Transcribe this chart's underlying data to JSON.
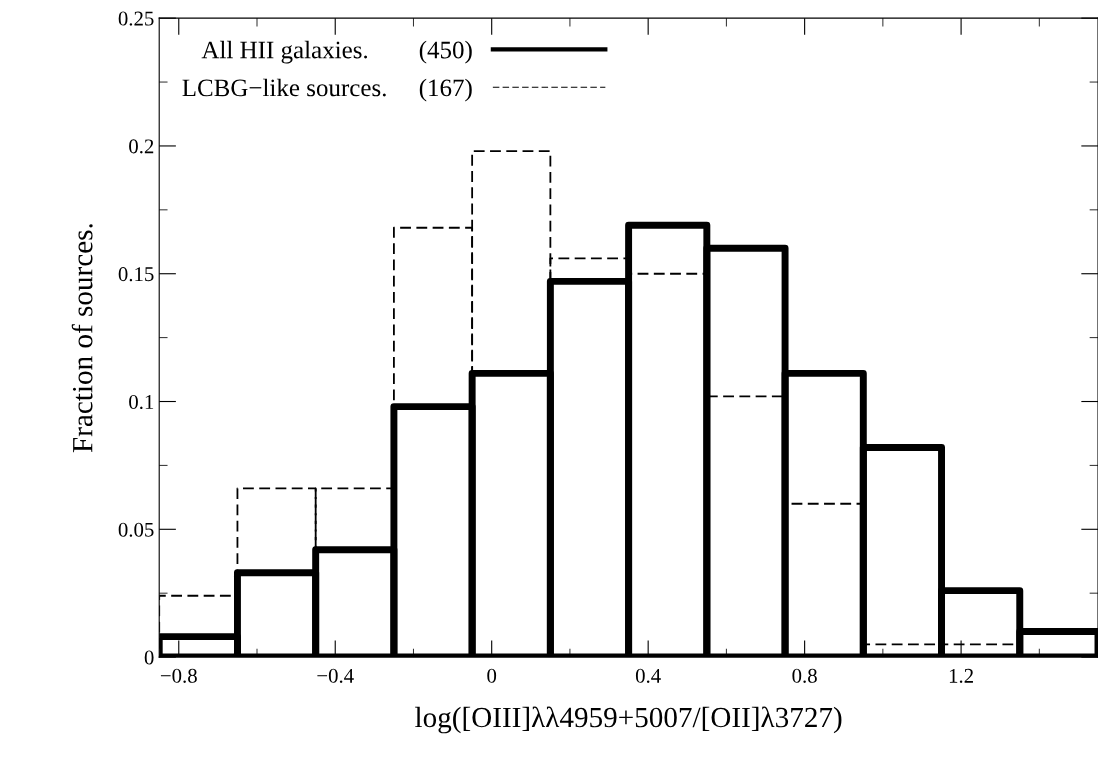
{
  "chart_data": {
    "type": "histogram",
    "xlabel": "log([OIII]λλ4959+5007/[OII]λ3727)",
    "ylabel": "Fraction of sources.",
    "bins": [
      -0.85,
      -0.65,
      -0.45,
      -0.25,
      -0.05,
      0.15,
      0.35,
      0.55,
      0.75,
      0.95,
      1.15,
      1.35,
      1.55
    ],
    "series": [
      {
        "name": "All HII galaxies.        (450)",
        "color": "#000000",
        "line_style": "solid",
        "values": [
          0.008,
          0.033,
          0.042,
          0.098,
          0.111,
          0.147,
          0.169,
          0.16,
          0.111,
          0.082,
          0.026,
          0.01
        ]
      },
      {
        "name": "LCBG−like sources.     (167)",
        "color": "#000000",
        "line_style": "dashed",
        "values": [
          0.024,
          0.066,
          0.066,
          0.168,
          0.198,
          0.156,
          0.15,
          0.102,
          0.06,
          0.005,
          0.005,
          0
        ]
      }
    ],
    "xlim": [
      -0.85,
      1.55
    ],
    "ylim": [
      0,
      0.25
    ],
    "xticks": [
      {
        "value": -0.8,
        "label": "−0.8"
      },
      {
        "value": -0.6,
        "label": null
      },
      {
        "value": -0.4,
        "label": "−0.4"
      },
      {
        "value": -0.2,
        "label": null
      },
      0,
      {
        "value": 0.2,
        "label": null
      },
      0.4,
      {
        "value": 0.6,
        "label": null
      },
      0.8,
      {
        "value": 1.0,
        "label": null
      },
      1.2,
      {
        "value": 1.4,
        "label": null
      }
    ],
    "yticks": [
      0,
      {
        "value": 0.025,
        "label": null
      },
      0.05,
      {
        "value": 0.075,
        "label": null
      },
      0.1,
      {
        "value": 0.125,
        "label": null
      },
      0.15,
      {
        "value": 0.175,
        "label": null
      },
      0.2,
      {
        "value": 0.225,
        "label": null
      },
      0.25
    ],
    "legend": "top left",
    "grid": false
  }
}
